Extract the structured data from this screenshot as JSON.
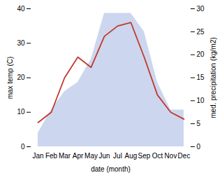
{
  "chart_data": {
    "type": "line",
    "xlabel": "date (month)",
    "ylabel": "max temp (C)",
    "y2label": "med. precipitation (kg/m2)",
    "categories": [
      "Jan",
      "Feb",
      "Mar",
      "Apr",
      "May",
      "Jun",
      "Jul",
      "Aug",
      "Sep",
      "Oct",
      "Nov",
      "Dec"
    ],
    "series": [
      {
        "type": "area",
        "axis": "y2",
        "color": "#b8c4e8",
        "values": [
          3,
          8,
          12,
          14,
          19,
          29,
          29,
          29,
          25,
          14,
          8,
          8
        ]
      },
      {
        "type": "line",
        "color": "#c0392b",
        "values": [
          7,
          10,
          20,
          26,
          23,
          32,
          35,
          36,
          26,
          15,
          10,
          8
        ]
      }
    ],
    "ylim": [
      0,
      40
    ],
    "yticks": [
      0,
      10,
      20,
      30,
      40
    ],
    "y2lim": [
      0,
      30
    ],
    "y2ticks": [
      0,
      5,
      10,
      15,
      20,
      25,
      30
    ],
    "grid": false
  }
}
